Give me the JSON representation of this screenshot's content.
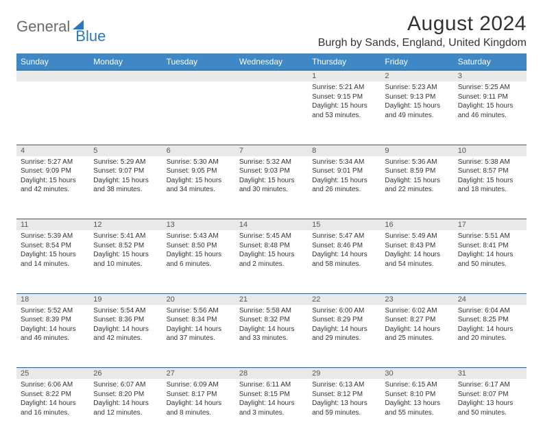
{
  "brand": {
    "part1": "General",
    "part2": "Blue"
  },
  "title": "August 2024",
  "location": "Burgh by Sands, England, United Kingdom",
  "colors": {
    "header_bg": "#3f88c5",
    "header_text": "#ffffff",
    "daynum_bg": "#e9e9e9",
    "border": "#2a5a8a",
    "brand_gray": "#6a6a6a",
    "brand_blue": "#2a78bd"
  },
  "weekdays": [
    "Sunday",
    "Monday",
    "Tuesday",
    "Wednesday",
    "Thursday",
    "Friday",
    "Saturday"
  ],
  "weeks": [
    {
      "nums": [
        "",
        "",
        "",
        "",
        "1",
        "2",
        "3"
      ],
      "cells": [
        null,
        null,
        null,
        null,
        {
          "sunrise": "5:21 AM",
          "sunset": "9:15 PM",
          "dl": "15 hours and 53 minutes."
        },
        {
          "sunrise": "5:23 AM",
          "sunset": "9:13 PM",
          "dl": "15 hours and 49 minutes."
        },
        {
          "sunrise": "5:25 AM",
          "sunset": "9:11 PM",
          "dl": "15 hours and 46 minutes."
        }
      ]
    },
    {
      "nums": [
        "4",
        "5",
        "6",
        "7",
        "8",
        "9",
        "10"
      ],
      "cells": [
        {
          "sunrise": "5:27 AM",
          "sunset": "9:09 PM",
          "dl": "15 hours and 42 minutes."
        },
        {
          "sunrise": "5:29 AM",
          "sunset": "9:07 PM",
          "dl": "15 hours and 38 minutes."
        },
        {
          "sunrise": "5:30 AM",
          "sunset": "9:05 PM",
          "dl": "15 hours and 34 minutes."
        },
        {
          "sunrise": "5:32 AM",
          "sunset": "9:03 PM",
          "dl": "15 hours and 30 minutes."
        },
        {
          "sunrise": "5:34 AM",
          "sunset": "9:01 PM",
          "dl": "15 hours and 26 minutes."
        },
        {
          "sunrise": "5:36 AM",
          "sunset": "8:59 PM",
          "dl": "15 hours and 22 minutes."
        },
        {
          "sunrise": "5:38 AM",
          "sunset": "8:57 PM",
          "dl": "15 hours and 18 minutes."
        }
      ]
    },
    {
      "nums": [
        "11",
        "12",
        "13",
        "14",
        "15",
        "16",
        "17"
      ],
      "cells": [
        {
          "sunrise": "5:39 AM",
          "sunset": "8:54 PM",
          "dl": "15 hours and 14 minutes."
        },
        {
          "sunrise": "5:41 AM",
          "sunset": "8:52 PM",
          "dl": "15 hours and 10 minutes."
        },
        {
          "sunrise": "5:43 AM",
          "sunset": "8:50 PM",
          "dl": "15 hours and 6 minutes."
        },
        {
          "sunrise": "5:45 AM",
          "sunset": "8:48 PM",
          "dl": "15 hours and 2 minutes."
        },
        {
          "sunrise": "5:47 AM",
          "sunset": "8:46 PM",
          "dl": "14 hours and 58 minutes."
        },
        {
          "sunrise": "5:49 AM",
          "sunset": "8:43 PM",
          "dl": "14 hours and 54 minutes."
        },
        {
          "sunrise": "5:51 AM",
          "sunset": "8:41 PM",
          "dl": "14 hours and 50 minutes."
        }
      ]
    },
    {
      "nums": [
        "18",
        "19",
        "20",
        "21",
        "22",
        "23",
        "24"
      ],
      "cells": [
        {
          "sunrise": "5:52 AM",
          "sunset": "8:39 PM",
          "dl": "14 hours and 46 minutes."
        },
        {
          "sunrise": "5:54 AM",
          "sunset": "8:36 PM",
          "dl": "14 hours and 42 minutes."
        },
        {
          "sunrise": "5:56 AM",
          "sunset": "8:34 PM",
          "dl": "14 hours and 37 minutes."
        },
        {
          "sunrise": "5:58 AM",
          "sunset": "8:32 PM",
          "dl": "14 hours and 33 minutes."
        },
        {
          "sunrise": "6:00 AM",
          "sunset": "8:29 PM",
          "dl": "14 hours and 29 minutes."
        },
        {
          "sunrise": "6:02 AM",
          "sunset": "8:27 PM",
          "dl": "14 hours and 25 minutes."
        },
        {
          "sunrise": "6:04 AM",
          "sunset": "8:25 PM",
          "dl": "14 hours and 20 minutes."
        }
      ]
    },
    {
      "nums": [
        "25",
        "26",
        "27",
        "28",
        "29",
        "30",
        "31"
      ],
      "cells": [
        {
          "sunrise": "6:06 AM",
          "sunset": "8:22 PM",
          "dl": "14 hours and 16 minutes."
        },
        {
          "sunrise": "6:07 AM",
          "sunset": "8:20 PM",
          "dl": "14 hours and 12 minutes."
        },
        {
          "sunrise": "6:09 AM",
          "sunset": "8:17 PM",
          "dl": "14 hours and 8 minutes."
        },
        {
          "sunrise": "6:11 AM",
          "sunset": "8:15 PM",
          "dl": "14 hours and 3 minutes."
        },
        {
          "sunrise": "6:13 AM",
          "sunset": "8:12 PM",
          "dl": "13 hours and 59 minutes."
        },
        {
          "sunrise": "6:15 AM",
          "sunset": "8:10 PM",
          "dl": "13 hours and 55 minutes."
        },
        {
          "sunrise": "6:17 AM",
          "sunset": "8:07 PM",
          "dl": "13 hours and 50 minutes."
        }
      ]
    }
  ],
  "labels": {
    "sunrise": "Sunrise:",
    "sunset": "Sunset:",
    "daylight": "Daylight:"
  }
}
